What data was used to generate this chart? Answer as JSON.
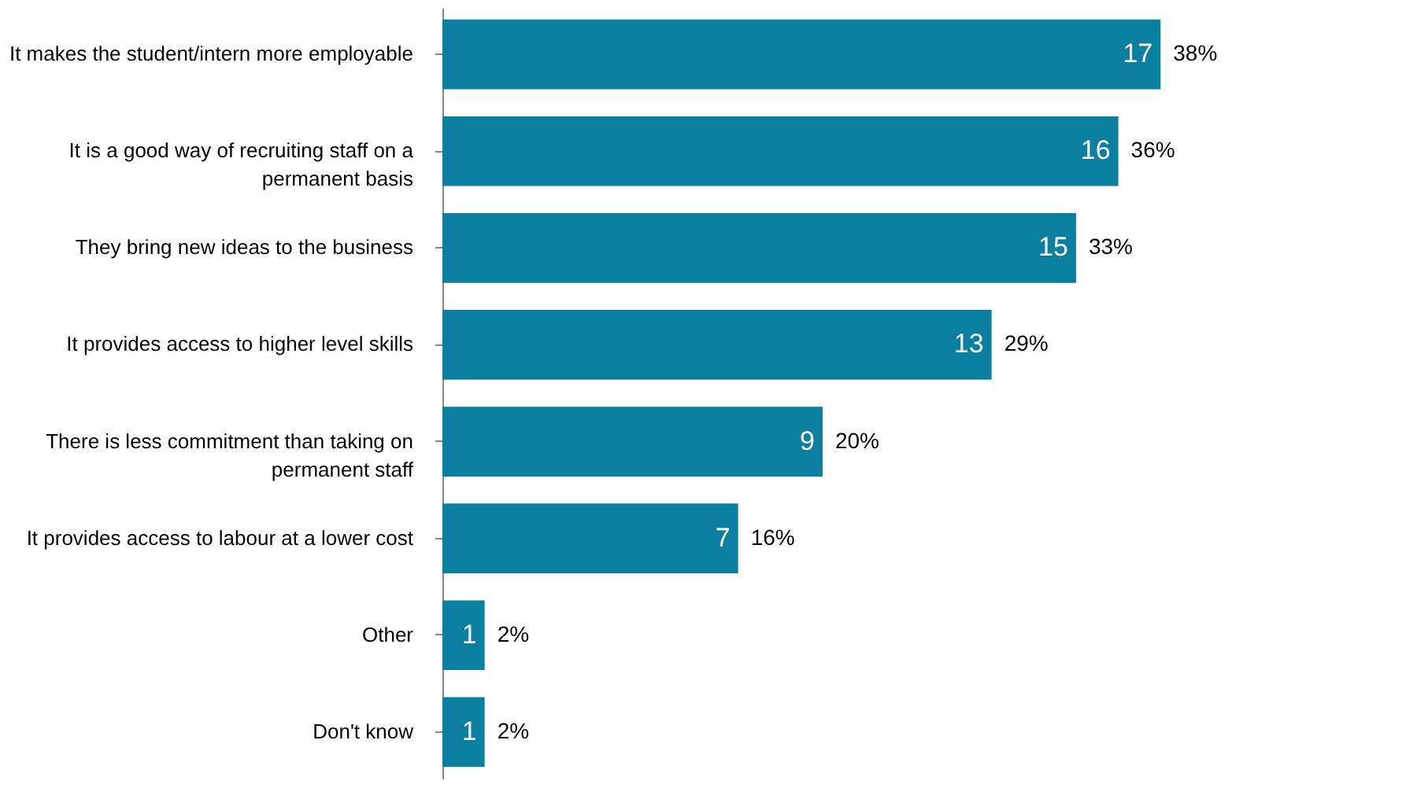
{
  "chart_data": {
    "type": "bar",
    "orientation": "horizontal",
    "categories": [
      "It makes the student/intern more employable",
      "It is a good way of recruiting staff on a permanent basis",
      "They bring new ideas to the business",
      "It provides access to higher level skills",
      "There is less commitment than taking on permanent staff",
      "It provides access to labour at a lower cost",
      "Other",
      "Don't know"
    ],
    "values": [
      17,
      16,
      15,
      13,
      9,
      7,
      1,
      1
    ],
    "annotations": [
      {
        "text": "38%",
        "x": 17,
        "y": "It makes the student/intern more employable"
      },
      {
        "text": "36%",
        "x": 16,
        "y": "It is a good way of recruiting staff on a permanent basis"
      },
      {
        "text": "33%",
        "x": 15,
        "y": "They bring new ideas to the business"
      },
      {
        "text": "29%",
        "x": 13,
        "y": "It provides access to higher level skills"
      },
      {
        "text": "20%",
        "x": 9,
        "y": "There is less commitment than taking on permanent staff"
      },
      {
        "text": "16%",
        "x": 7,
        "y": "It provides access to labour at a lower cost"
      },
      {
        "text": "2%",
        "x": 1,
        "y": "Other"
      },
      {
        "text": "2%",
        "x": 1,
        "y": "Don't know"
      }
    ],
    "data_labels": true,
    "color": "#0a7fa0",
    "grid": false
  }
}
